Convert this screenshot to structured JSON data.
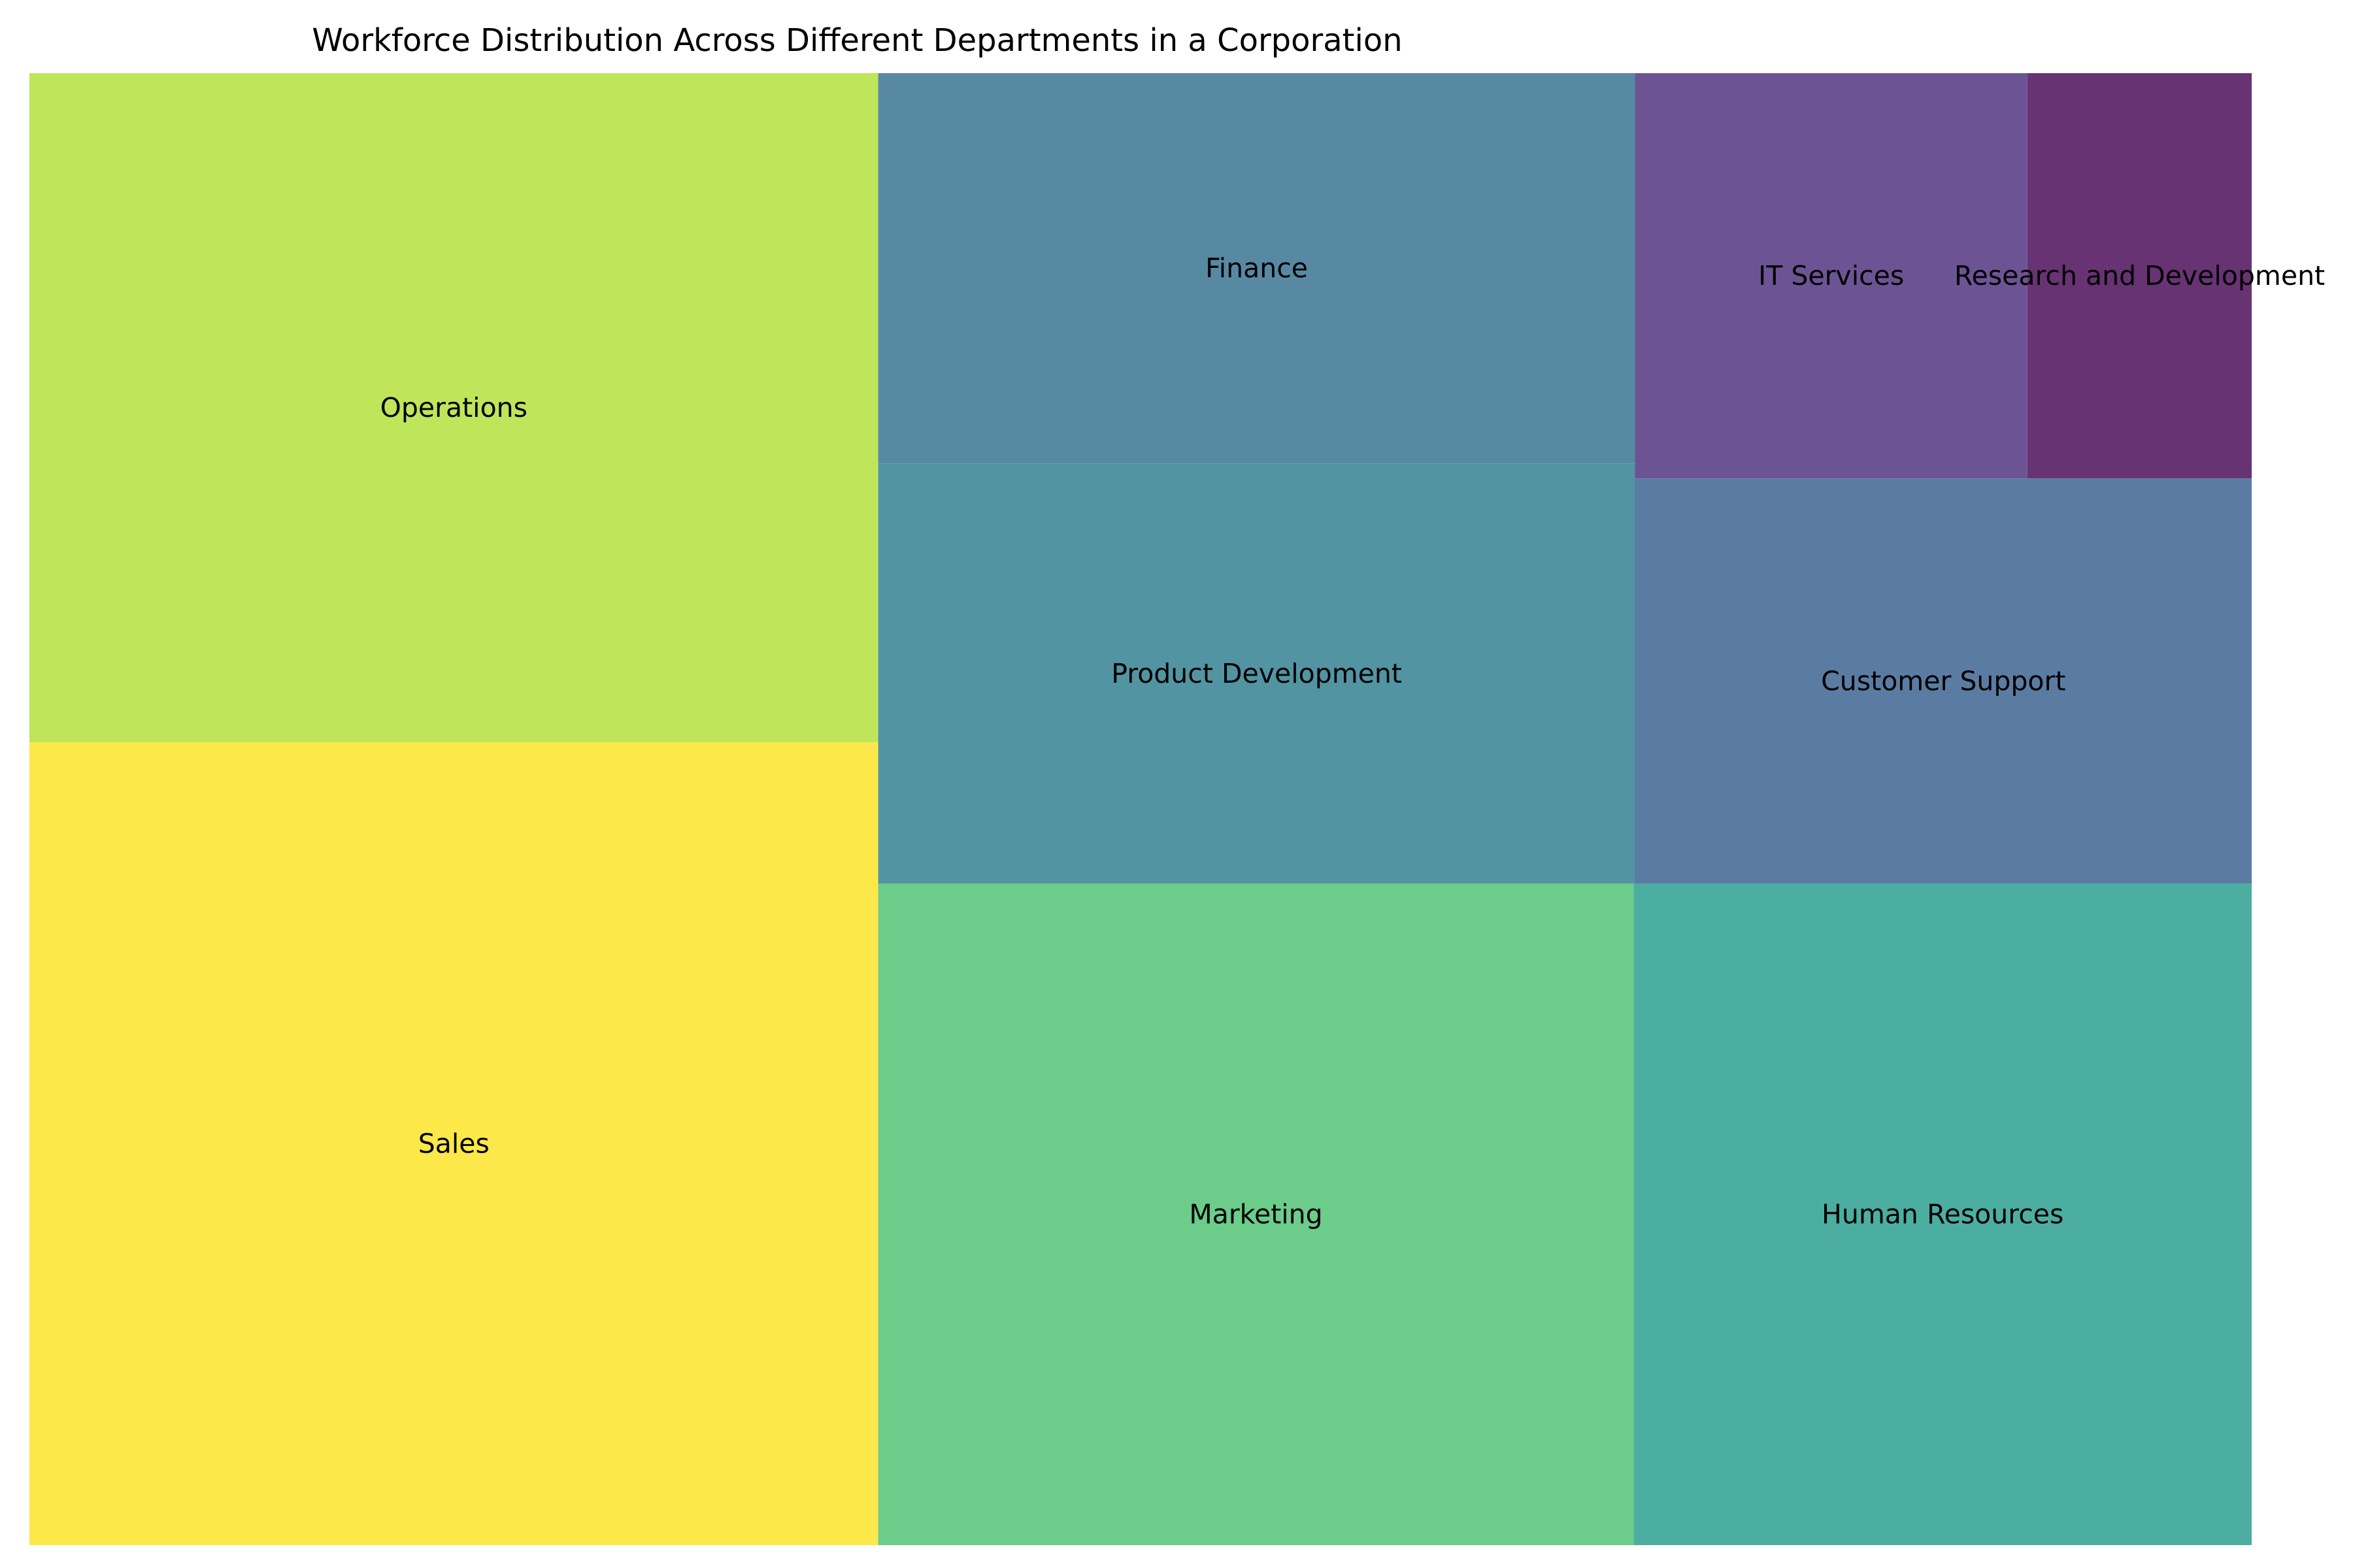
{
  "chart_data": {
    "type": "treemap",
    "title": "Workforce Distribution Across Different Departments in a Corporation",
    "xlabel": "",
    "ylabel": "",
    "grid": false,
    "legend": "none",
    "items": [
      {
        "label": "Sales",
        "value": 30,
        "color": "#fde84a"
      },
      {
        "label": "Operations",
        "value": 25,
        "color": "#bfe55a"
      },
      {
        "label": "Marketing",
        "value": 22,
        "color": "#6ccc8a"
      },
      {
        "label": "Human Resources",
        "value": 18,
        "color": "#4caea0"
      },
      {
        "label": "Product Development",
        "value": 14,
        "color": "#5294a2"
      },
      {
        "label": "Finance",
        "value": 13,
        "color": "#5889a3"
      },
      {
        "label": "Customer Support",
        "value": 11,
        "color": "#5b7ca2"
      },
      {
        "label": "IT Services",
        "value": 7,
        "color": "#6c5494"
      },
      {
        "label": "Research and Development",
        "value": 4,
        "color": "#673373"
      }
    ]
  }
}
